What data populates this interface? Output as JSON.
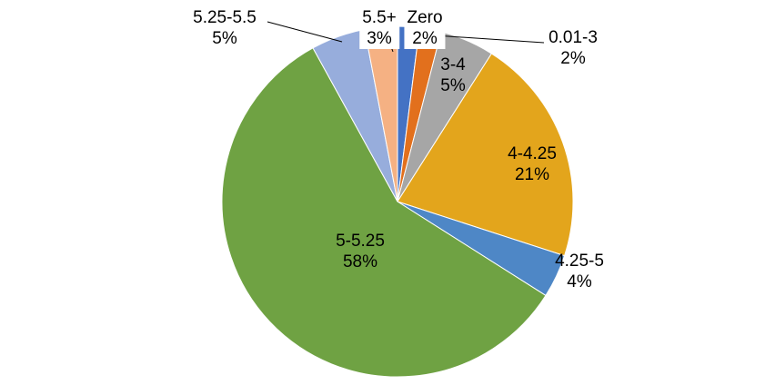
{
  "chart_data": {
    "type": "pie",
    "title": "",
    "unit": "%",
    "legend": "none",
    "direction": "clockwise",
    "start_angle_deg": 0,
    "label_style": "category name + percentage",
    "categories": [
      "Zero",
      "0.01-3",
      "3-4",
      "4-4.25",
      "4.25-5",
      "5-5.25",
      "5.25-5.5",
      "5.5+"
    ],
    "values": [
      2,
      2,
      5,
      21,
      4,
      58,
      5,
      3
    ],
    "slices": [
      {
        "label": "Zero",
        "value": 2,
        "pct": "2%",
        "color": "#4472C4"
      },
      {
        "label": "0.01-3",
        "value": 2,
        "pct": "2%",
        "color": "#E2701D"
      },
      {
        "label": "3-4",
        "value": 5,
        "pct": "5%",
        "color": "#A6A6A6"
      },
      {
        "label": "4-4.25",
        "value": 21,
        "pct": "21%",
        "color": "#E3A51C"
      },
      {
        "label": "4.25-5",
        "value": 4,
        "pct": "4%",
        "color": "#4E87C6"
      },
      {
        "label": "5-5.25",
        "value": 58,
        "pct": "58%",
        "color": "#6FA243"
      },
      {
        "label": "5.25-5.5",
        "value": 5,
        "pct": "5%",
        "color": "#97ADDC"
      },
      {
        "label": "5.5+",
        "value": 3,
        "pct": "3%",
        "color": "#F5B183"
      }
    ]
  }
}
